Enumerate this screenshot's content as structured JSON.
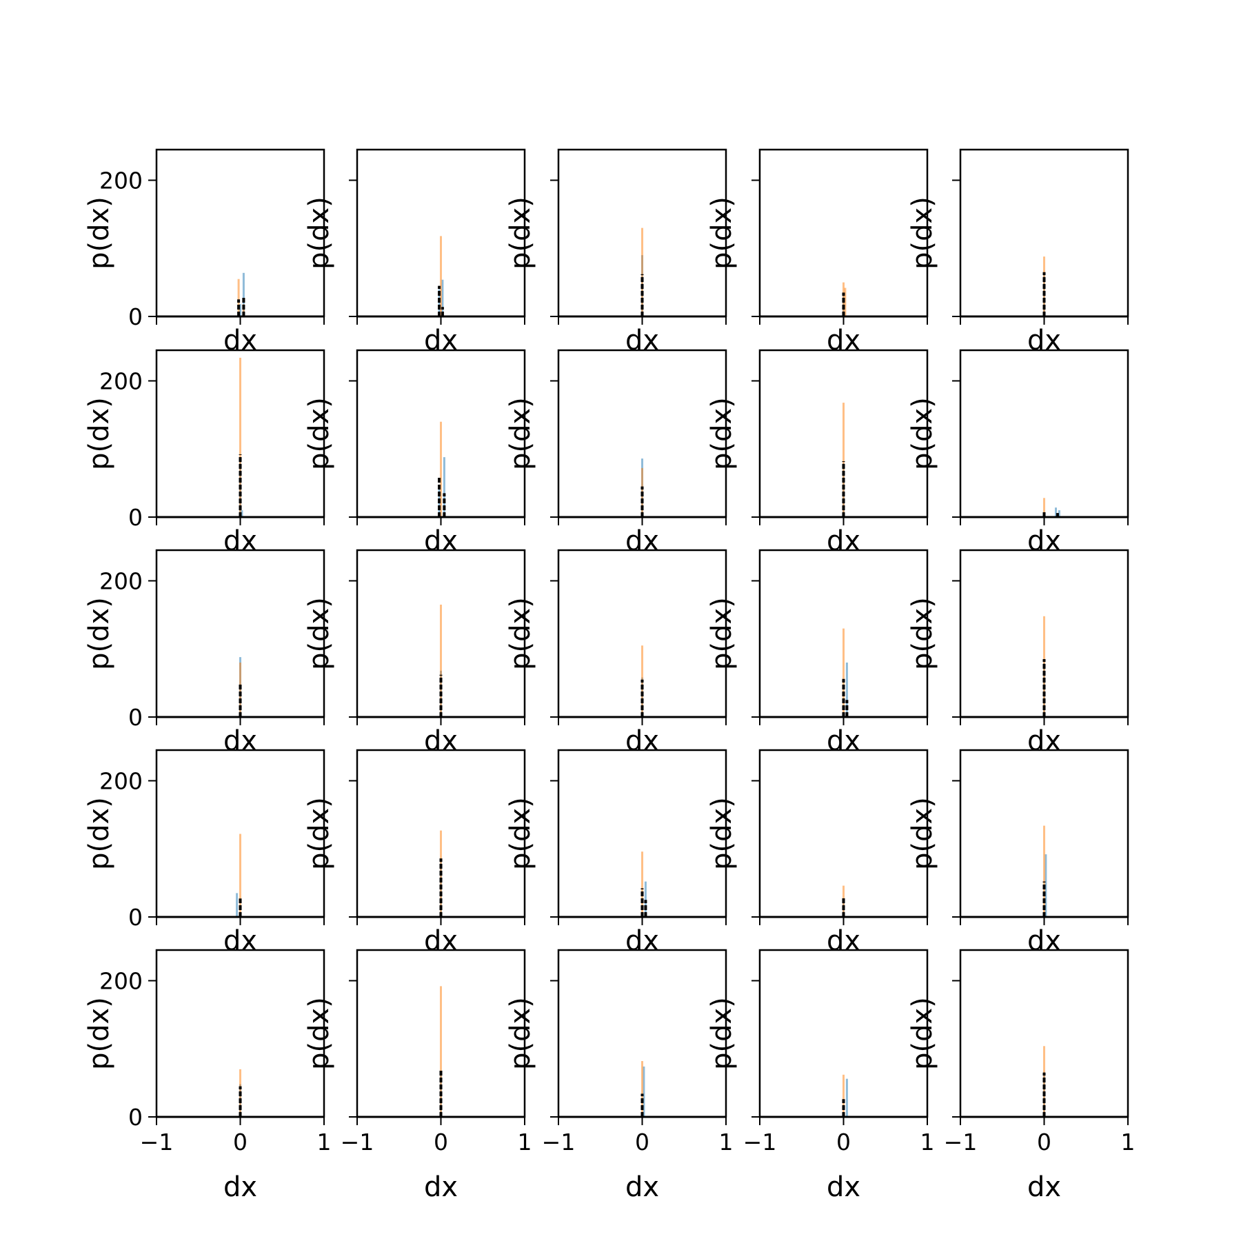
{
  "chart_data": {
    "type": "bar",
    "layout": "5x5 grid of histograms, shared x and y axes",
    "xlabel": "dx",
    "ylabel": "p(dx)",
    "xlim": [
      -1,
      1
    ],
    "ylim": [
      0,
      245
    ],
    "x_ticks": [
      -1,
      0,
      1
    ],
    "x_tick_labels": [
      "−1",
      "0",
      "1"
    ],
    "y_ticks": [
      0,
      200
    ],
    "y_tick_labels": [
      "0",
      "200"
    ],
    "grid": false,
    "colors": {
      "series_1": "#1f77b4",
      "series_2": "#ff7f0e",
      "series_3": "#000000"
    },
    "bin_width": 0.02,
    "panels": [
      {
        "s1": [
          [
            0.0,
            18
          ],
          [
            0.04,
            64
          ]
        ],
        "s2": [
          [
            -0.02,
            55
          ],
          [
            0.04,
            18
          ]
        ],
        "s3": [
          [
            -0.02,
            25
          ],
          [
            0.04,
            28
          ]
        ]
      },
      {
        "s1": [
          [
            -0.02,
            40
          ],
          [
            0.02,
            54
          ]
        ],
        "s2": [
          [
            0.0,
            118
          ]
        ],
        "s3": [
          [
            -0.02,
            45
          ],
          [
            0.02,
            14
          ]
        ]
      },
      {
        "s1": [
          [
            0.0,
            90
          ]
        ],
        "s2": [
          [
            0.0,
            130
          ]
        ],
        "s3": [
          [
            0.0,
            62
          ]
        ]
      },
      {
        "s1": [
          [
            0.0,
            32
          ]
        ],
        "s2": [
          [
            0.0,
            50
          ],
          [
            0.02,
            42
          ]
        ],
        "s3": [
          [
            0.0,
            35
          ]
        ]
      },
      {
        "s1": [
          [
            0.0,
            64
          ]
        ],
        "s2": [
          [
            0.0,
            88
          ]
        ],
        "s3": [
          [
            0.0,
            65
          ]
        ]
      },
      {
        "s1": [
          [
            0.0,
            88
          ],
          [
            0.02,
            10
          ]
        ],
        "s2": [
          [
            0.0,
            234
          ]
        ],
        "s3": [
          [
            0.0,
            92
          ]
        ]
      },
      {
        "s1": [
          [
            -0.02,
            42
          ],
          [
            0.04,
            88
          ]
        ],
        "s2": [
          [
            0.0,
            140
          ]
        ],
        "s3": [
          [
            -0.02,
            60
          ],
          [
            0.04,
            35
          ]
        ]
      },
      {
        "s1": [
          [
            0.0,
            86
          ]
        ],
        "s2": [
          [
            0.0,
            72
          ]
        ],
        "s3": [
          [
            0.0,
            45
          ]
        ]
      },
      {
        "s1": [
          [
            0.0,
            80
          ]
        ],
        "s2": [
          [
            0.0,
            168
          ]
        ],
        "s3": [
          [
            0.0,
            82
          ]
        ]
      },
      {
        "s1": [
          [
            0.14,
            14
          ],
          [
            0.18,
            10
          ]
        ],
        "s2": [
          [
            0.0,
            28
          ]
        ],
        "s3": [
          [
            0.0,
            8
          ],
          [
            0.16,
            6
          ]
        ]
      },
      {
        "s1": [
          [
            0.0,
            88
          ]
        ],
        "s2": [
          [
            0.0,
            80
          ]
        ],
        "s3": [
          [
            0.0,
            50
          ]
        ]
      },
      {
        "s1": [
          [
            0.0,
            68
          ]
        ],
        "s2": [
          [
            0.0,
            165
          ]
        ],
        "s3": [
          [
            0.0,
            62
          ]
        ]
      },
      {
        "s1": [
          [
            0.0,
            58
          ]
        ],
        "s2": [
          [
            0.0,
            105
          ]
        ],
        "s3": [
          [
            0.0,
            55
          ]
        ]
      },
      {
        "s1": [
          [
            0.04,
            80
          ]
        ],
        "s2": [
          [
            0.0,
            130
          ]
        ],
        "s3": [
          [
            0.0,
            56
          ],
          [
            0.04,
            25
          ]
        ]
      },
      {
        "s1": [
          [
            0.0,
            80
          ]
        ],
        "s2": [
          [
            0.0,
            148
          ]
        ],
        "s3": [
          [
            0.0,
            85
          ]
        ]
      },
      {
        "s1": [
          [
            -0.04,
            35
          ]
        ],
        "s2": [
          [
            0.0,
            122
          ]
        ],
        "s3": [
          [
            0.0,
            27
          ]
        ]
      },
      {
        "s1": [
          [
            0.0,
            82
          ]
        ],
        "s2": [
          [
            0.0,
            127
          ]
        ],
        "s3": [
          [
            0.0,
            86
          ]
        ]
      },
      {
        "s1": [
          [
            0.04,
            52
          ]
        ],
        "s2": [
          [
            0.0,
            96
          ]
        ],
        "s3": [
          [
            0.0,
            42
          ],
          [
            0.04,
            25
          ]
        ]
      },
      {
        "s1": [
          [
            0.0,
            25
          ]
        ],
        "s2": [
          [
            0.0,
            46
          ]
        ],
        "s3": [
          [
            0.0,
            30
          ]
        ]
      },
      {
        "s1": [
          [
            0.02,
            92
          ]
        ],
        "s2": [
          [
            0.0,
            134
          ]
        ],
        "s3": [
          [
            0.0,
            52
          ]
        ]
      },
      {
        "s1": [
          [
            0.0,
            48
          ]
        ],
        "s2": [
          [
            0.0,
            70
          ]
        ],
        "s3": [
          [
            0.0,
            45
          ]
        ]
      },
      {
        "s1": [
          [
            0.0,
            66
          ]
        ],
        "s2": [
          [
            0.0,
            192
          ]
        ],
        "s3": [
          [
            0.0,
            70
          ]
        ]
      },
      {
        "s1": [
          [
            0.02,
            74
          ]
        ],
        "s2": [
          [
            0.0,
            82
          ]
        ],
        "s3": [
          [
            0.0,
            34
          ]
        ]
      },
      {
        "s1": [
          [
            0.04,
            56
          ]
        ],
        "s2": [
          [
            0.0,
            62
          ]
        ],
        "s3": [
          [
            0.0,
            26
          ]
        ]
      },
      {
        "s1": [
          [
            0.0,
            66
          ]
        ],
        "s2": [
          [
            0.0,
            104
          ]
        ],
        "s3": [
          [
            0.0,
            65
          ]
        ]
      }
    ]
  }
}
